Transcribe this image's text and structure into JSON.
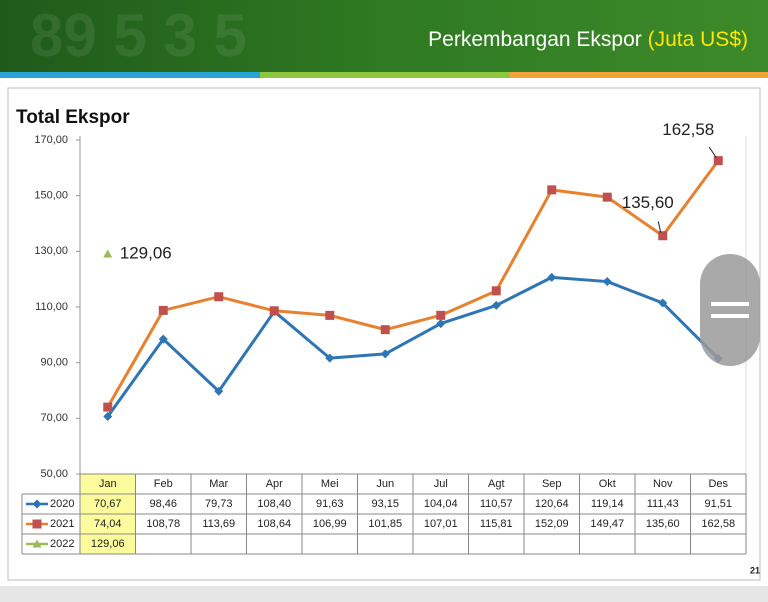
{
  "header": {
    "title": "Perkembangan Ekspor",
    "unit": "(Juta US$)"
  },
  "page_number": "21",
  "chart_data": {
    "type": "line",
    "title": "Total Ekspor",
    "categories": [
      "Jan",
      "Feb",
      "Mar",
      "Apr",
      "Mei",
      "Jun",
      "Jul",
      "Agt",
      "Sep",
      "Okt",
      "Nov",
      "Des"
    ],
    "series": [
      {
        "name": "2020",
        "color": "#2e75b6",
        "marker_color": "#2e75b6",
        "marker": "diamond",
        "values": [
          70.67,
          98.46,
          79.73,
          108.4,
          91.63,
          93.15,
          104.04,
          110.57,
          120.64,
          119.14,
          111.43,
          91.51
        ],
        "value_labels": [
          "70,67",
          "98,46",
          "79,73",
          "108,40",
          "91,63",
          "93,15",
          "104,04",
          "110,57",
          "120,64",
          "119,14",
          "111,43",
          "91,51"
        ]
      },
      {
        "name": "2021",
        "color": "#e8812f",
        "marker_color": "#c0504d",
        "marker": "square",
        "values": [
          74.04,
          108.78,
          113.69,
          108.64,
          106.99,
          101.85,
          107.01,
          115.81,
          152.09,
          149.47,
          135.6,
          162.58
        ],
        "value_labels": [
          "74,04",
          "108,78",
          "113,69",
          "108,64",
          "106,99",
          "101,85",
          "107,01",
          "115,81",
          "152,09",
          "149,47",
          "135,60",
          "162,58"
        ]
      },
      {
        "name": "2022",
        "color": "#9bbb59",
        "marker_color": "#9bbb59",
        "marker": "triangle",
        "values": [
          129.06,
          null,
          null,
          null,
          null,
          null,
          null,
          null,
          null,
          null,
          null,
          null
        ],
        "value_labels": [
          "129,06",
          null,
          null,
          null,
          null,
          null,
          null,
          null,
          null,
          null,
          null,
          null
        ]
      }
    ],
    "ylim": [
      50,
      170
    ],
    "yticks": [
      {
        "value": 50,
        "label": "50,00"
      },
      {
        "value": 70,
        "label": "70,00"
      },
      {
        "value": 90,
        "label": "90,00"
      },
      {
        "value": 110,
        "label": "110,00"
      },
      {
        "value": 130,
        "label": "130,00"
      },
      {
        "value": 150,
        "label": "150,00"
      },
      {
        "value": 170,
        "label": "170,00"
      }
    ],
    "grid": false
  }
}
